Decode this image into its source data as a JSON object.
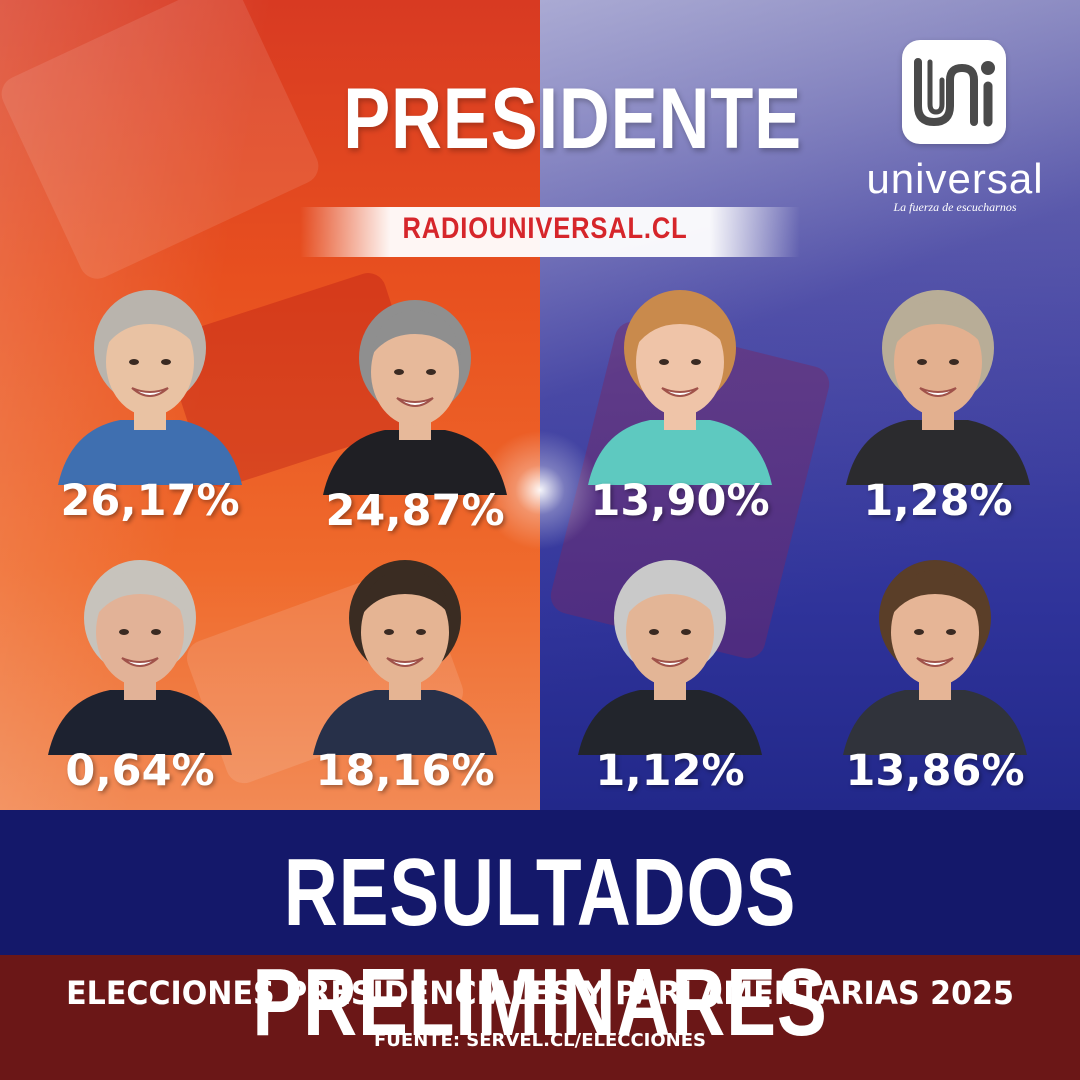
{
  "header": {
    "title": "PRESIDENTE",
    "url": "RADIOUNIVERSAL.CL"
  },
  "logo": {
    "name": "universal",
    "tagline": "La fuerza de escucharnos"
  },
  "colors": {
    "left_panel": "#e8501f",
    "right_panel": "#2f339a",
    "bottom_band": "#14186a",
    "footer_band": "#6b1717",
    "url_text": "#d6262b"
  },
  "candidates": [
    {
      "percent": "26,17%",
      "value": 26.17,
      "skin": "#e9c2a3",
      "hair": "#b9b4ad",
      "shirt": "#3f6fb0"
    },
    {
      "percent": "24,87%",
      "value": 24.87,
      "skin": "#e7b99a",
      "hair": "#8f8f8f",
      "shirt": "#1f1f24"
    },
    {
      "percent": "13,90%",
      "value": 13.9,
      "skin": "#efc4a8",
      "hair": "#c98a4c",
      "shirt": "#5ec9c0"
    },
    {
      "percent": "1,28%",
      "value": 1.28,
      "skin": "#e3b08f",
      "hair": "#b8ad97",
      "shirt": "#2b2b2e"
    },
    {
      "percent": "0,64%",
      "value": 0.64,
      "skin": "#e2b297",
      "hair": "#c7c3bc",
      "shirt": "#1d2230"
    },
    {
      "percent": "18,16%",
      "value": 18.16,
      "skin": "#e5b493",
      "hair": "#3a2c22",
      "shirt": "#273049"
    },
    {
      "percent": "1,12%",
      "value": 1.12,
      "skin": "#e3b596",
      "hair": "#c9c9c9",
      "shirt": "#22252c"
    },
    {
      "percent": "13,86%",
      "value": 13.86,
      "skin": "#e6b596",
      "hair": "#5a3e28",
      "shirt": "#30333b"
    }
  ],
  "footer": {
    "headline": "RESULTADOS PRELIMINARES",
    "subtitle": "ELECCIONES PRESIDENCIALES Y PARLAMENTARIAS 2025",
    "source": "FUENTE: SERVEL.CL/ELECCIONES"
  }
}
